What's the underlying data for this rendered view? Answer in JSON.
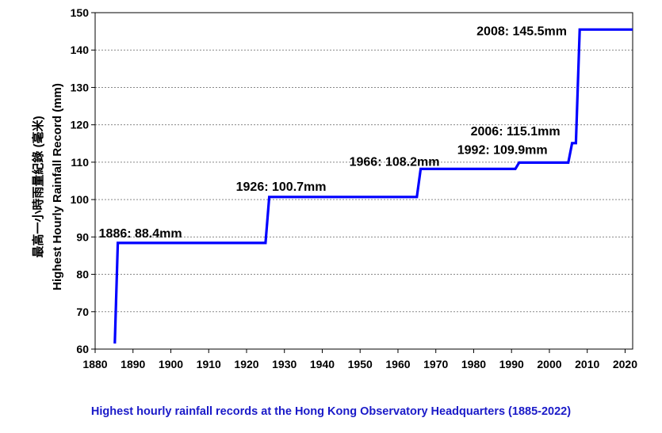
{
  "chart_data": {
    "type": "line",
    "title": "",
    "xlabel": "",
    "ylabel": "Highest Hourly Rainfall Record (mm)",
    "ylabel_chinese": "最高一小時雨量紀錄 (毫米)",
    "xlim": [
      1880,
      2022
    ],
    "ylim": [
      60,
      150
    ],
    "x_ticks": [
      1880,
      1890,
      1900,
      1910,
      1920,
      1930,
      1940,
      1950,
      1960,
      1970,
      1980,
      1990,
      2000,
      2010,
      2020
    ],
    "y_ticks": [
      60,
      70,
      80,
      90,
      100,
      110,
      120,
      130,
      140,
      150
    ],
    "grid": "horizontal dotted",
    "line_color": "#0000ff",
    "series": [
      {
        "x": [
          1885.2,
          1886,
          1925,
          1926,
          1965,
          1966,
          1991,
          1992,
          2005,
          2006,
          2007,
          2008,
          2022
        ],
        "y": [
          61.5,
          88.4,
          88.4,
          100.7,
          100.7,
          108.2,
          108.2,
          109.9,
          109.9,
          115.1,
          115.1,
          145.5,
          145.5
        ]
      }
    ],
    "annotations": [
      {
        "text": "1886: 88.4mm",
        "x": 1886,
        "y": 88.4
      },
      {
        "text": "1926: 100.7mm",
        "x": 1926,
        "y": 100.7
      },
      {
        "text": "1966: 108.2mm",
        "x": 1966,
        "y": 108.2
      },
      {
        "text": "1992: 109.9mm",
        "x": 1992,
        "y": 109.9
      },
      {
        "text": "2006: 115.1mm",
        "x": 2006,
        "y": 115.1
      },
      {
        "text": "2008: 145.5mm",
        "x": 2008,
        "y": 145.5
      }
    ]
  },
  "caption": "Highest hourly rainfall records at the Hong Kong Observatory Headquarters (1885-2022)"
}
